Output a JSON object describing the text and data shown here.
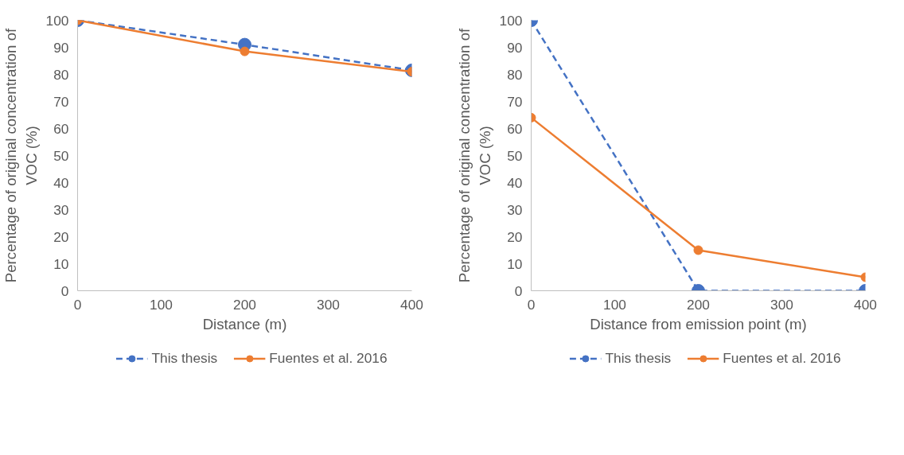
{
  "chart_data": [
    {
      "type": "line",
      "xlabel": "Distance (m)",
      "ylabel": "Percentage of original concentration of VOC (%)",
      "x": [
        0,
        200,
        400
      ],
      "xlim": [
        0,
        400
      ],
      "xticks": [
        0,
        100,
        200,
        300,
        400
      ],
      "ylim": [
        0,
        100
      ],
      "yticks": [
        0,
        10,
        20,
        30,
        40,
        50,
        60,
        70,
        80,
        90,
        100
      ],
      "grid": false,
      "legend": "bottom",
      "marker": "circle",
      "series": [
        {
          "name": "This thesis",
          "color": "#4472c4",
          "line_style": "dashed",
          "values": [
            100,
            91,
            81.5
          ]
        },
        {
          "name": "Fuentes et al. 2016",
          "color": "#ed7d31",
          "line_style": "solid",
          "values": [
            100,
            88.5,
            81
          ]
        }
      ]
    },
    {
      "type": "line",
      "xlabel": "Distance from emission point (m)",
      "ylabel": "Percentage of original concentration of VOC (%)",
      "x": [
        0,
        200,
        400
      ],
      "xlim": [
        0,
        400
      ],
      "xticks": [
        0,
        100,
        200,
        300,
        400
      ],
      "ylim": [
        0,
        100
      ],
      "yticks": [
        0,
        10,
        20,
        30,
        40,
        50,
        60,
        70,
        80,
        90,
        100
      ],
      "grid": false,
      "legend": "bottom",
      "marker": "circle",
      "series": [
        {
          "name": "This thesis",
          "color": "#4472c4",
          "line_style": "dashed",
          "values": [
            100,
            0,
            0
          ]
        },
        {
          "name": "Fuentes et al. 2016",
          "color": "#ed7d31",
          "line_style": "solid",
          "values": [
            64,
            15,
            5
          ]
        }
      ]
    }
  ]
}
